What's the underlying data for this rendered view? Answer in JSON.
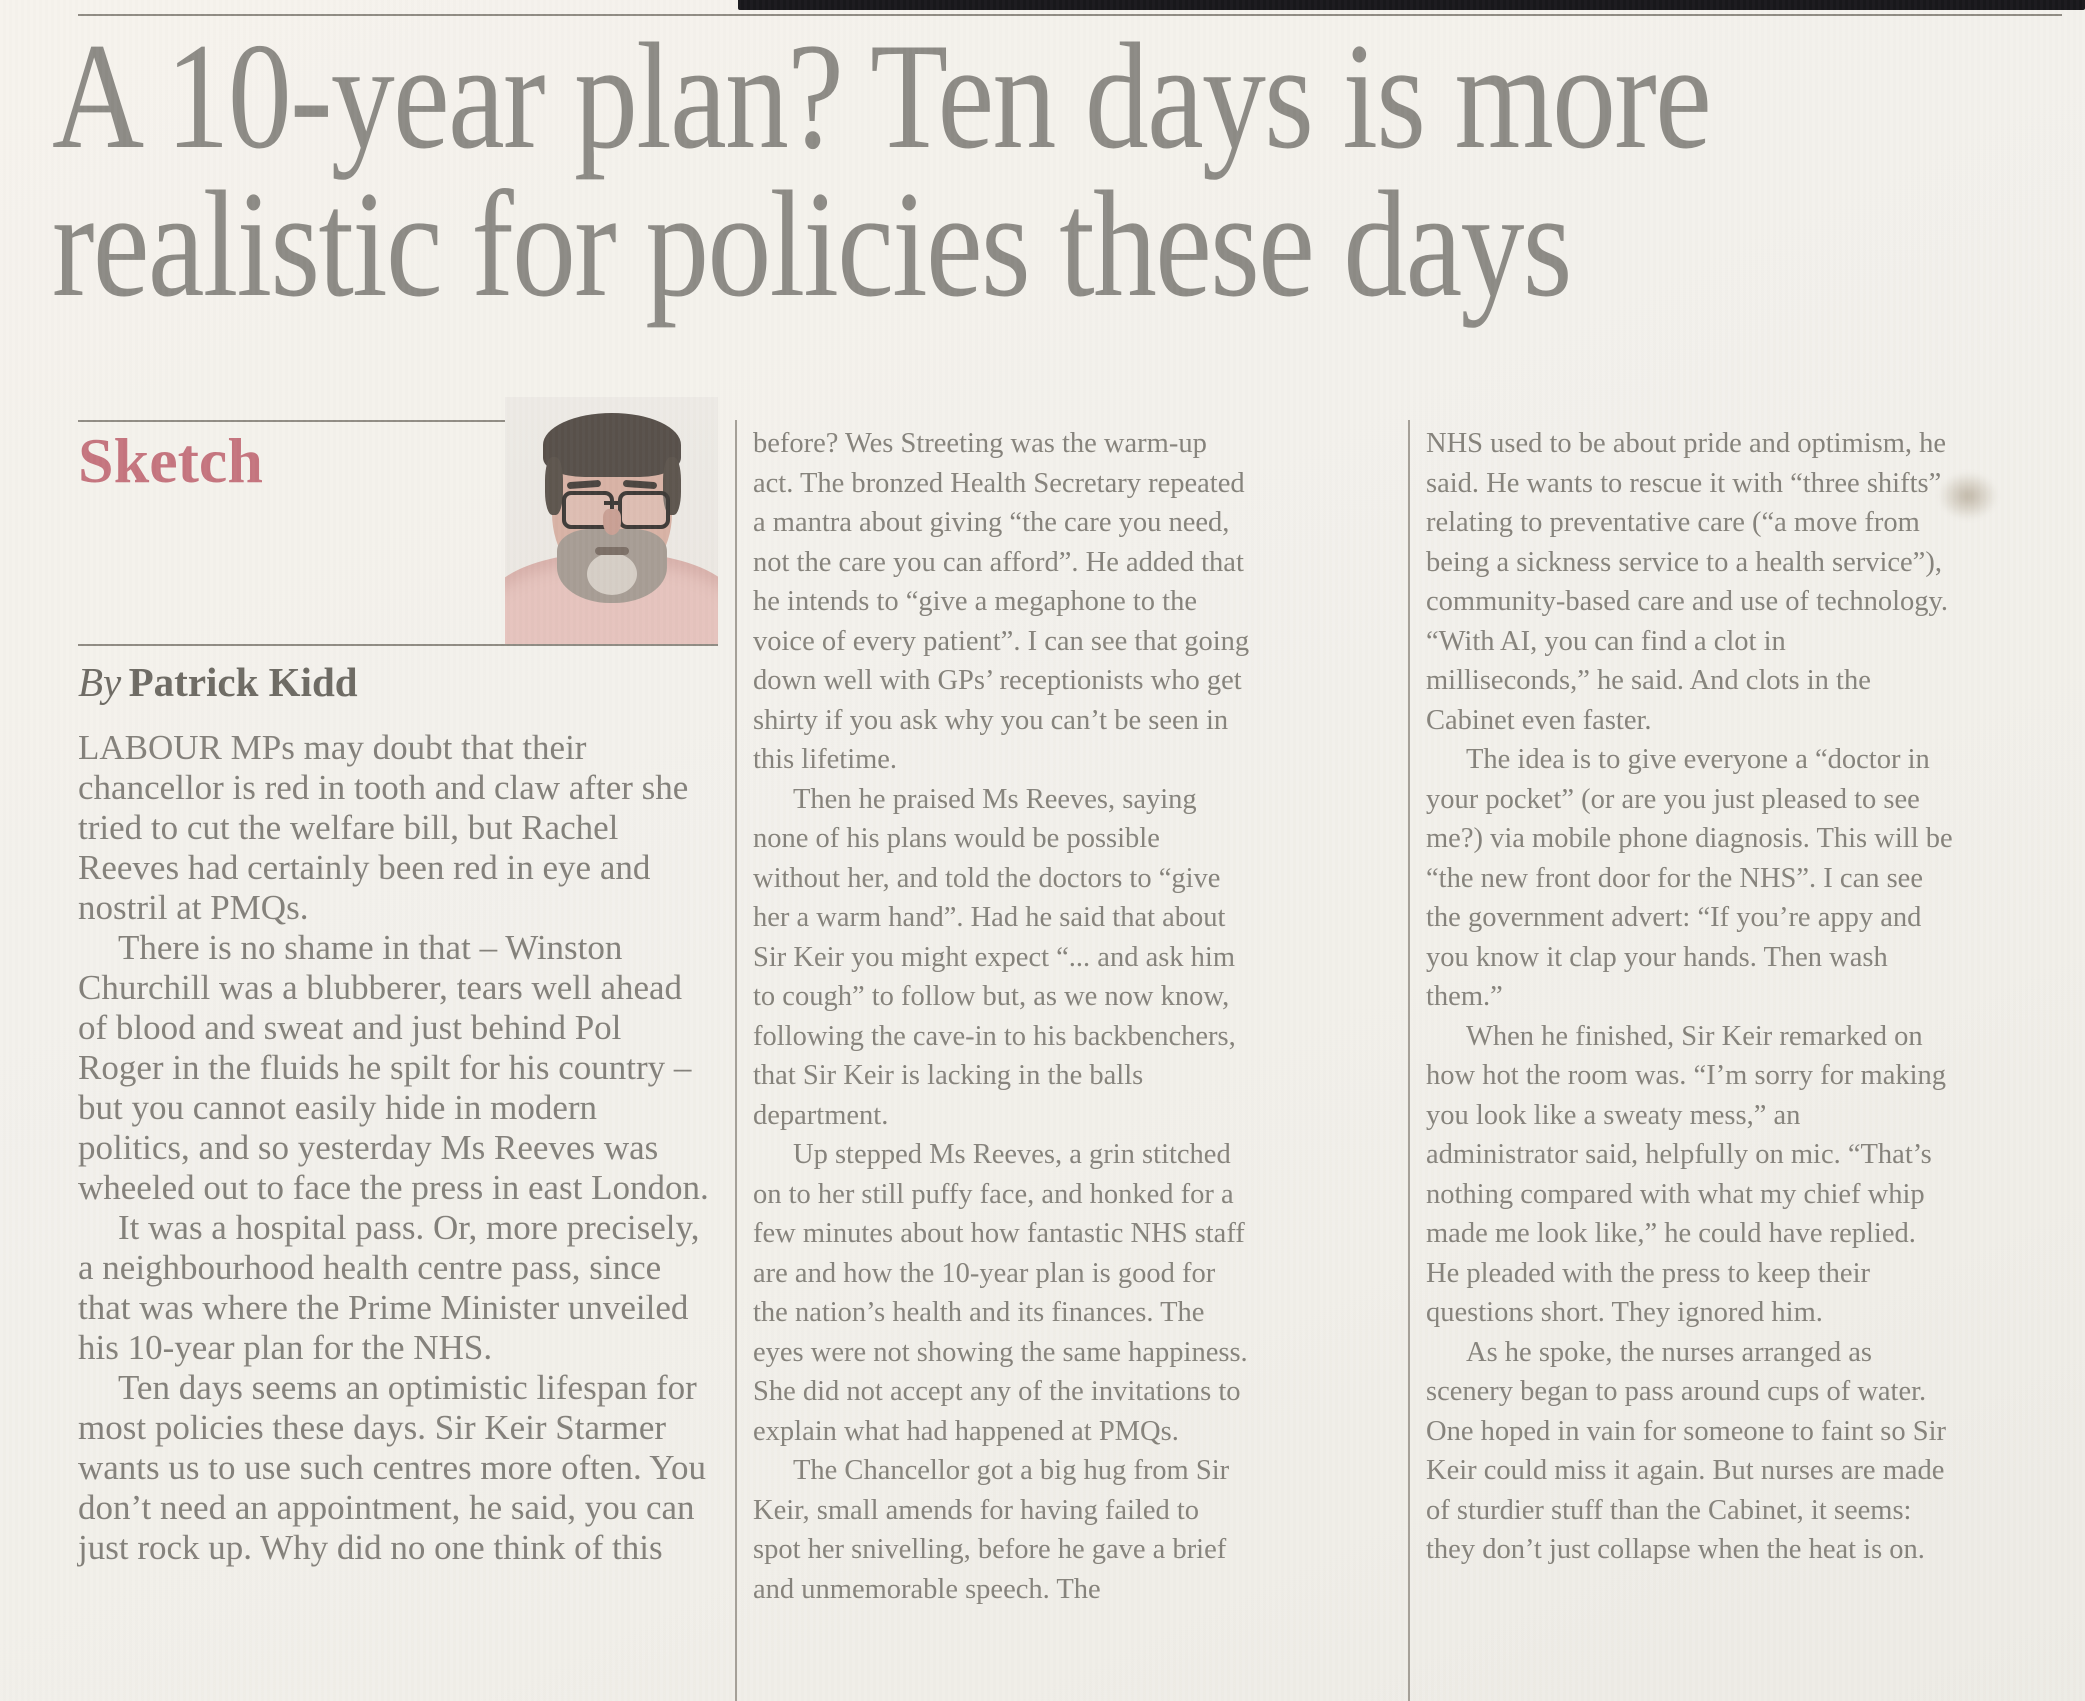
{
  "colors": {
    "paper": "#f3f1ec",
    "headline_gray": "#8c8a85",
    "body_gray": "#85827b",
    "kicker_red": "#c5747e",
    "byline_gray": "#6d6a63"
  },
  "header": {
    "headline_line1": "A 10-year plan? Ten days is more",
    "headline_line2": "realistic for policies these days",
    "kicker": "Sketch",
    "byline_prefix": "By",
    "byline_name": "Patrick Kidd"
  },
  "article": {
    "col1_paragraphs": [
      "LABOUR MPs may doubt that their chancellor is red in tooth and claw after she tried to cut the welfare bill, but Rachel Reeves had certainly been red in eye and nostril at PMQs.",
      "There is no shame in that – Winston Churchill was a blubberer, tears well ahead of blood and sweat and just behind Pol Roger in the fluids he spilt for his country – but you cannot easily hide in modern politics, and so yesterday Ms Reeves was wheeled out to face the press in east London.",
      "It was a hospital pass. Or, more precisely, a neighbourhood health centre pass, since that was where the Prime Minister unveiled his 10-year plan for the NHS.",
      "Ten days seems an optimistic lifespan for most policies these days. Sir Keir Starmer wants us to use such centres more often. You don’t need an appointment, he said, you can just rock up. Why did no one think of this"
    ],
    "col2_paragraphs": [
      "before? Wes Streeting was the warm-up act. The bronzed Health Secretary repeated a mantra about giving “the care you need, not the care you can afford”. He added that he intends to “give a megaphone to the voice of every patient”. I can see that going down well with GPs’ receptionists who get shirty if you ask why you can’t be seen in this lifetime.",
      "Then he praised Ms Reeves, saying none of his plans would be possible without her, and told the doctors to “give her a warm hand”. Had he said that about Sir Keir you might expect “... and ask him to cough” to follow but, as we now know, following the cave-in to his backbenchers, that Sir Keir is lacking in the balls department.",
      "Up stepped Ms Reeves, a grin stitched on to her still puffy face, and honked for a few minutes about how fantastic NHS staff are and how the 10-year plan is good for the nation’s health and its finances. The eyes were not showing the same happiness. She did not accept any of the invitations to explain what had happened at PMQs.",
      "The Chancellor got a big hug from Sir Keir, small amends for having failed to spot her snivelling, before he gave a brief and unmemorable speech. The"
    ],
    "col3_paragraphs": [
      "NHS used to be about pride and optimism, he said. He wants to rescue it with “three shifts” relating to preventative care (“a move from being a sickness service to a health service”), community-based care and use of technology. “With AI, you can find a clot in milliseconds,” he said. And clots in the Cabinet even faster.",
      "The idea is to give everyone a “doctor in your pocket” (or are you just pleased to see me?) via mobile phone diagnosis. This will be “the new front door for the NHS”. I can see the government advert: “If you’re appy and you know it clap your hands. Then wash them.”",
      "When he finished, Sir Keir remarked on how hot the room was. “I’m sorry for making you look like a sweaty mess,” an administrator said, helpfully on mic. “That’s nothing compared with what my chief whip made me look like,” he could have replied. He pleaded with the press to keep their questions short. They ignored him.",
      "As he spoke, the nurses arranged as scenery began to pass around cups of water. One hoped in vain for someone to faint so Sir Keir could miss it again. But nurses are made of sturdier stuff than the Cabinet, it seems: they don’t just collapse when the heat is on."
    ]
  }
}
